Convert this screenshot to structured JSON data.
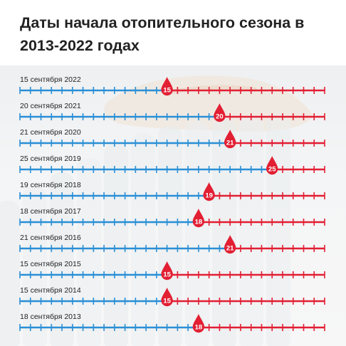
{
  "title": "Даты начала отопительного сезона в 2013-2022 годах",
  "colors": {
    "before": "#2a8fd6",
    "after": "#e21f33",
    "marker": "#e21f33",
    "marker_text": "#ffffff",
    "label": "#222222"
  },
  "chart_data": {
    "type": "timeline",
    "title": "Даты начала отопительного сезона в 2013-2022 годах",
    "x_range_days": [
      1,
      30
    ],
    "month": "сентября",
    "rows": [
      {
        "year": 2022,
        "label": "15 сентября 2022",
        "day": 15
      },
      {
        "year": 2021,
        "label": "20 сентября 2021",
        "day": 20
      },
      {
        "year": 2020,
        "label": "21 сентября 2020",
        "day": 21
      },
      {
        "year": 2019,
        "label": "25 сентября 2019",
        "day": 25
      },
      {
        "year": 2018,
        "label": "19 сентября 2018",
        "day": 19
      },
      {
        "year": 2017,
        "label": "18 сентября 2017",
        "day": 18
      },
      {
        "year": 2016,
        "label": "21 сентября 2016",
        "day": 21
      },
      {
        "year": 2015,
        "label": "15 сентября 2015",
        "day": 15
      },
      {
        "year": 2014,
        "label": "15 сентября 2014",
        "day": 15
      },
      {
        "year": 2013,
        "label": "18 сентября 2013",
        "day": 18
      }
    ]
  }
}
